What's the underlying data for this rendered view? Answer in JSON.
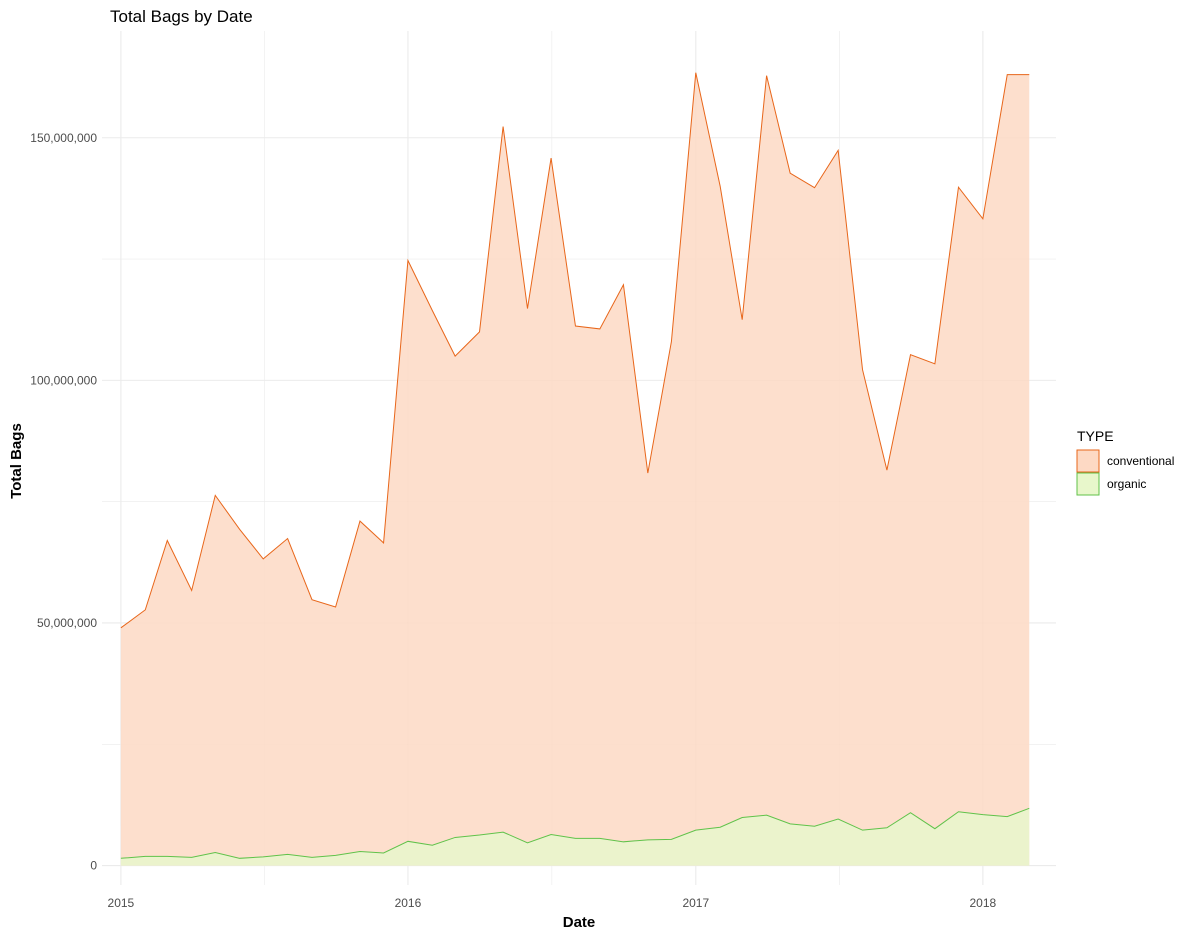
{
  "chart_data": {
    "type": "area",
    "title": "Total Bags by Date",
    "xlabel": "Date",
    "ylabel": "Total Bags",
    "x_range": [
      "2014-12-08",
      "2018-04-04"
    ],
    "ylim": [
      -4000000,
      172000000
    ],
    "x_ticks": [
      {
        "date": "2015-01-01",
        "label": "2015"
      },
      {
        "date": "2016-01-01",
        "label": "2016"
      },
      {
        "date": "2017-01-01",
        "label": "2017"
      },
      {
        "date": "2018-01-01",
        "label": "2018"
      }
    ],
    "y_ticks": [
      {
        "value": 0,
        "label": "0"
      },
      {
        "value": 50000000,
        "label": "50,000,000"
      },
      {
        "value": 100000000,
        "label": "100,000,000"
      },
      {
        "value": 150000000,
        "label": "150,000,000"
      }
    ],
    "grid": true,
    "stacked": false,
    "legend": {
      "title": "TYPE",
      "position": "right"
    },
    "x": [
      "2015-01-01",
      "2015-02-01",
      "2015-03-01",
      "2015-04-01",
      "2015-05-01",
      "2015-06-01",
      "2015-07-01",
      "2015-08-01",
      "2015-09-01",
      "2015-10-01",
      "2015-11-01",
      "2015-12-01",
      "2016-01-01",
      "2016-02-01",
      "2016-03-01",
      "2016-04-01",
      "2016-05-01",
      "2016-06-01",
      "2016-07-01",
      "2016-08-01",
      "2016-09-01",
      "2016-10-01",
      "2016-11-01",
      "2016-12-01",
      "2017-01-01",
      "2017-02-01",
      "2017-03-01",
      "2017-04-01",
      "2017-05-01",
      "2017-06-01",
      "2017-07-01",
      "2017-08-01",
      "2017-09-01",
      "2017-10-01",
      "2017-11-01",
      "2017-12-01",
      "2018-01-01",
      "2018-02-01",
      "2018-03-01"
    ],
    "series": [
      {
        "name": "conventional",
        "fill": "#fdd9c4",
        "stroke": "#e8661a",
        "values": [
          49000000,
          52700000,
          67000000,
          56700000,
          76300000,
          69300000,
          63200000,
          67400000,
          54800000,
          53300000,
          71000000,
          66500000,
          124700000,
          114400000,
          105000000,
          110000000,
          152300000,
          114800000,
          145800000,
          111200000,
          110600000,
          119700000,
          80900000,
          108000000,
          163400000,
          140000000,
          112500000,
          162800000,
          142700000,
          139700000,
          147400000,
          102200000,
          81500000,
          105300000,
          103400000,
          139800000,
          133300000,
          163000000,
          163000000
        ]
      },
      {
        "name": "organic",
        "fill": "#e8f7cb",
        "stroke": "#60c24a",
        "values": [
          1500000,
          1900000,
          1900000,
          1700000,
          2700000,
          1500000,
          1800000,
          2300000,
          1700000,
          2100000,
          2900000,
          2600000,
          5000000,
          4200000,
          5800000,
          6300000,
          6900000,
          4700000,
          6400000,
          5600000,
          5600000,
          4900000,
          5300000,
          5400000,
          7300000,
          7900000,
          9900000,
          10400000,
          8600000,
          8100000,
          9600000,
          7300000,
          7800000,
          10900000,
          7600000,
          11100000,
          10500000,
          10100000,
          11800000
        ]
      }
    ]
  }
}
